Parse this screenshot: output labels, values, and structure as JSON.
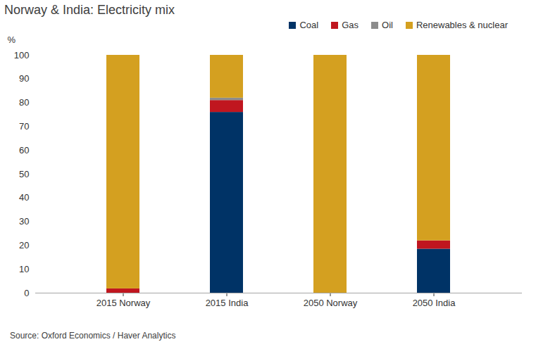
{
  "chart_data": {
    "type": "bar",
    "stacked": true,
    "title": "Norway & India: Electricity mix",
    "y_label": "%",
    "source": "Source: Oxford Economics / Haver Analytics",
    "categories": [
      "2015 Norway",
      "2015 India",
      "2050 Norway",
      "2050 India"
    ],
    "series": [
      {
        "name": "Coal",
        "color": "#003366",
        "values": [
          0,
          76,
          0,
          18.5
        ]
      },
      {
        "name": "Gas",
        "color": "#C0161F",
        "values": [
          1.8,
          5,
          0,
          3.5
        ]
      },
      {
        "name": "Oil",
        "color": "#8C8C8C",
        "values": [
          0,
          1,
          0,
          0
        ]
      },
      {
        "name": "Renewables & nuclear",
        "color": "#D4A020",
        "values": [
          98.2,
          18,
          100,
          78
        ]
      }
    ],
    "ylim": [
      0,
      100
    ],
    "yticks": [
      0,
      10,
      20,
      30,
      40,
      50,
      60,
      70,
      80,
      90,
      100
    ],
    "grid": false,
    "legend": "top-right"
  }
}
